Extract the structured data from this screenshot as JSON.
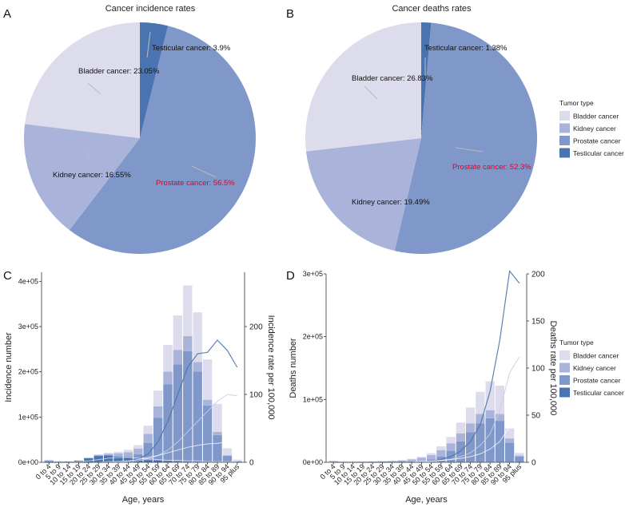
{
  "colors": {
    "bladder": "#dcdcec",
    "kidney": "#aab4da",
    "prostate": "#7f97c9",
    "testicular": "#4a74b0",
    "prostate_label": "#e4002b",
    "axis": "#333333",
    "line_light": "#ffffff"
  },
  "legend": {
    "title": "Tumor type",
    "items": [
      "Bladder cancer",
      "Kidney cancer",
      "Prostate cancer",
      "Testicular cancer"
    ]
  },
  "chart_data": [
    {
      "panel": "A",
      "type": "pie",
      "title": "Cancer incidence rates",
      "slices": [
        {
          "name": "Testicular cancer",
          "value": 3.9,
          "label": "Testicular cancer: 3.9%"
        },
        {
          "name": "Prostate cancer",
          "value": 56.5,
          "label": "Prostate cancer: 56.5%"
        },
        {
          "name": "Kidney cancer",
          "value": 16.55,
          "label": "Kidney cancer: 16.55%"
        },
        {
          "name": "Bladder cancer",
          "value": 23.05,
          "label": "Bladder cancer: 23.05%"
        }
      ]
    },
    {
      "panel": "B",
      "type": "pie",
      "title": "Cancer deaths rates",
      "slices": [
        {
          "name": "Testicular cancer",
          "value": 1.38,
          "label": "Testicular cancer: 1.38%"
        },
        {
          "name": "Prostate cancer",
          "value": 52.3,
          "label": "Prostate cancer: 52.3%"
        },
        {
          "name": "Kidney cancer",
          "value": 19.49,
          "label": "Kidney cancer: 19.49%"
        },
        {
          "name": "Bladder cancer",
          "value": 26.83,
          "label": "Bladder cancer: 26.83%"
        }
      ]
    },
    {
      "panel": "C",
      "type": "bar",
      "stacked": true,
      "xlabel": "Age, years",
      "ylabel": "Incidence number",
      "ylabel_right": "Incidence rate per 100,000",
      "ylim": [
        0,
        420000
      ],
      "yticks": [
        0,
        100000,
        200000,
        300000,
        400000
      ],
      "yticklabels": [
        "0e+00",
        "1e+05",
        "2e+05",
        "3e+05",
        "4e+05"
      ],
      "ylim_right": [
        0,
        280
      ],
      "yticks_right": [
        0,
        100,
        200
      ],
      "categories": [
        "0 to 4",
        "5 to 9",
        "10 to 14",
        "15 to 19",
        "20 to 24",
        "25 to 29",
        "30 to 34",
        "35 to 39",
        "40 to 44",
        "45 to 49",
        "50 to 54",
        "55 to 59",
        "60 to 64",
        "65 to 69",
        "70 to 74",
        "75 to 79",
        "80 to 84",
        "85 to 89",
        "90 to 94",
        "95 plus"
      ],
      "series": [
        {
          "name": "Testicular cancer",
          "values": [
            2000,
            1000,
            1500,
            3500,
            9000,
            14000,
            15000,
            13000,
            11000,
            8000,
            5000,
            3500,
            2500,
            1500,
            800,
            400,
            200,
            100,
            50,
            0
          ]
        },
        {
          "name": "Prostate cancer",
          "values": [
            0,
            0,
            0,
            0,
            0,
            0,
            0,
            500,
            2500,
            10000,
            38000,
            95000,
            170000,
            215000,
            245000,
            200000,
            125000,
            60000,
            14000,
            2000
          ]
        },
        {
          "name": "Kidney cancer",
          "values": [
            3000,
            1000,
            500,
            500,
            1000,
            2500,
            4000,
            6500,
            9000,
            12000,
            20000,
            25000,
            28000,
            32000,
            33000,
            21000,
            13000,
            7000,
            1500,
            500
          ]
        },
        {
          "name": "Bladder cancer",
          "values": [
            500,
            0,
            0,
            0,
            500,
            1000,
            2000,
            3000,
            5000,
            8000,
            18000,
            35000,
            59000,
            76000,
            112000,
            110000,
            89000,
            62000,
            15500,
            3500
          ]
        }
      ],
      "rate_series": [
        {
          "name": "Prostate cancer",
          "values": [
            0,
            0,
            0,
            0,
            0,
            0,
            0,
            1,
            2,
            5,
            12,
            30,
            60,
            100,
            140,
            160,
            162,
            180,
            165,
            140
          ]
        },
        {
          "name": "Bladder cancer",
          "values": [
            0,
            0,
            0,
            0,
            0,
            0,
            0,
            1,
            1,
            2,
            5,
            10,
            18,
            30,
            45,
            60,
            75,
            90,
            100,
            98
          ]
        },
        {
          "name": "Kidney cancer",
          "values": [
            0,
            0,
            0,
            0,
            0,
            0,
            1,
            1,
            2,
            4,
            7,
            10,
            14,
            18,
            22,
            25,
            27,
            28,
            30,
            27
          ]
        },
        {
          "name": "Testicular cancer",
          "values": [
            0,
            0,
            0,
            1,
            2,
            4,
            6,
            7,
            7,
            6,
            5,
            4,
            3,
            3,
            2,
            2,
            1,
            1,
            1,
            1
          ]
        }
      ]
    },
    {
      "panel": "D",
      "type": "bar",
      "stacked": true,
      "xlabel": "Age, years",
      "ylabel": "Deaths number",
      "ylabel_right": "Deaths rate per 100,000",
      "ylim": [
        0,
        300000
      ],
      "yticks": [
        0,
        100000,
        200000,
        300000
      ],
      "yticklabels": [
        "0e+00",
        "1e+05",
        "2e+05",
        "3e+05"
      ],
      "ylim_right": [
        0,
        200
      ],
      "yticks_right": [
        0,
        50,
        100,
        150,
        200
      ],
      "categories": [
        "0 to 4",
        "5 to 9",
        "10 to 14",
        "15 to 19",
        "20 to 24",
        "25 to 29",
        "30 to 34",
        "35 to 39",
        "40 to 44",
        "45 to 49",
        "50 to 54",
        "55 to 59",
        "60 to 64",
        "65 to 69",
        "70 to 74",
        "75 to 79",
        "80 to 84",
        "85 to 89",
        "90 to 94",
        "95 plus"
      ],
      "series": [
        {
          "name": "Testicular cancer",
          "values": [
            500,
            200,
            200,
            500,
            800,
            1000,
            1000,
            1000,
            900,
            800,
            600,
            400,
            300,
            200,
            100,
            100,
            50,
            0,
            0,
            0
          ]
        },
        {
          "name": "Prostate cancer",
          "values": [
            0,
            0,
            0,
            0,
            0,
            0,
            0,
            200,
            600,
            1500,
            4000,
            9000,
            18000,
            33000,
            48000,
            62000,
            70000,
            66000,
            31000,
            9000
          ]
        },
        {
          "name": "Kidney cancer",
          "values": [
            1500,
            300,
            200,
            300,
            400,
            700,
            1000,
            1800,
            3000,
            5000,
            7000,
            10000,
            12000,
            13000,
            14000,
            15000,
            13000,
            11000,
            7000,
            2000
          ]
        },
        {
          "name": "Bladder cancer",
          "values": [
            0,
            0,
            0,
            0,
            0,
            0,
            300,
            500,
            1000,
            1700,
            3000,
            6000,
            10000,
            17000,
            25000,
            35000,
            46000,
            45000,
            16000,
            4000
          ]
        }
      ],
      "rate_series": [
        {
          "name": "Prostate cancer",
          "values": [
            0,
            0,
            0,
            0,
            0,
            0,
            0,
            0,
            0,
            0,
            1,
            3,
            6,
            12,
            22,
            40,
            75,
            130,
            203,
            190
          ]
        },
        {
          "name": "Bladder cancer",
          "values": [
            0,
            0,
            0,
            0,
            0,
            0,
            0,
            0,
            0,
            0,
            1,
            2,
            3,
            6,
            10,
            18,
            30,
            55,
            95,
            112
          ]
        },
        {
          "name": "Kidney cancer",
          "values": [
            0,
            0,
            0,
            0,
            0,
            0,
            0,
            0,
            0,
            1,
            1,
            2,
            3,
            4,
            6,
            9,
            14,
            22,
            38,
            40
          ]
        },
        {
          "name": "Testicular cancer",
          "values": [
            0,
            0,
            0,
            0,
            0,
            0,
            0,
            0,
            0,
            0,
            0,
            0,
            0,
            0,
            0,
            0,
            0,
            0,
            0,
            0
          ]
        }
      ]
    }
  ],
  "panel_letters": [
    "A",
    "B",
    "C",
    "D"
  ]
}
